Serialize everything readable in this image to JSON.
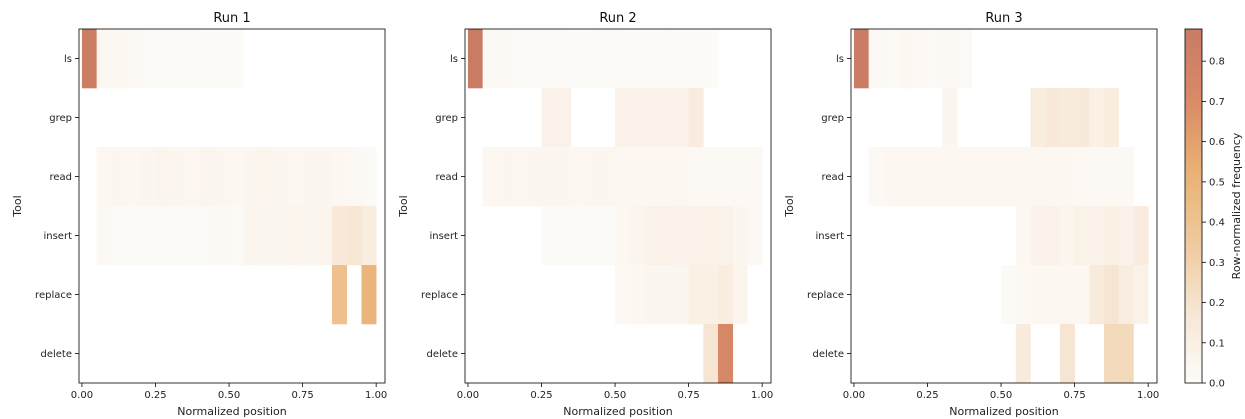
{
  "chart_data": {
    "type": "heatmap",
    "rows": [
      "ls",
      "grep",
      "read",
      "insert",
      "replace",
      "delete"
    ],
    "x_ticks": [
      "0.00",
      "0.25",
      "0.50",
      "0.75",
      "1.00"
    ],
    "x_tick_values": [
      0,
      0.25,
      0.5,
      0.75,
      1.0
    ],
    "xlim": [
      -0.01,
      1.03
    ],
    "bins": 20,
    "xlabel": "Normalized position",
    "ylabel": "Tool",
    "colorbar": {
      "label": "Row-normalized frequency",
      "range": [
        0,
        0.88
      ],
      "ticks": [
        "0.0",
        "0.1",
        "0.2",
        "0.3",
        "0.4",
        "0.5",
        "0.6",
        "0.7",
        "0.8"
      ],
      "tick_values": [
        0,
        0.1,
        0.2,
        0.3,
        0.4,
        0.5,
        0.6,
        0.7,
        0.8
      ],
      "colors": [
        "#fdfcfa",
        "#f7e6d4",
        "#efc99c",
        "#e9b174",
        "#d98a66",
        "#c97b64"
      ]
    },
    "panels": [
      {
        "title": "Run 1",
        "x_start": 0.0,
        "values": [
          [
            0.85,
            0.04,
            0.04,
            0.03,
            0.02,
            0.02,
            0.02,
            0.02,
            0.01,
            0.01,
            0.01,
            0.0,
            0.0,
            0.0,
            0.0,
            0.0,
            0.0,
            0.0,
            0.0,
            0.0
          ],
          [
            0.0,
            0.0,
            0.0,
            0.0,
            0.0,
            0.0,
            0.0,
            0.0,
            0.0,
            0.0,
            0.0,
            0.0,
            0.0,
            0.0,
            0.0,
            0.0,
            0.0,
            0.0,
            0.0,
            0.0
          ],
          [
            0.0,
            0.04,
            0.05,
            0.04,
            0.05,
            0.06,
            0.05,
            0.04,
            0.06,
            0.05,
            0.04,
            0.05,
            0.06,
            0.05,
            0.04,
            0.05,
            0.05,
            0.04,
            0.03,
            0.02
          ],
          [
            0.0,
            0.03,
            0.02,
            0.02,
            0.02,
            0.02,
            0.02,
            0.02,
            0.02,
            0.03,
            0.02,
            0.06,
            0.05,
            0.05,
            0.06,
            0.05,
            0.06,
            0.15,
            0.17,
            0.12
          ],
          [
            0.0,
            0.0,
            0.0,
            0.0,
            0.0,
            0.0,
            0.0,
            0.0,
            0.0,
            0.0,
            0.0,
            0.0,
            0.0,
            0.0,
            0.0,
            0.0,
            0.0,
            0.42,
            0.0,
            0.5
          ],
          [
            0.0,
            0.0,
            0.0,
            0.0,
            0.0,
            0.0,
            0.0,
            0.0,
            0.0,
            0.0,
            0.0,
            0.0,
            0.0,
            0.0,
            0.0,
            0.0,
            0.0,
            0.0,
            0.0,
            0.0
          ]
        ]
      },
      {
        "title": "Run 2",
        "x_start": 0.0,
        "values": [
          [
            0.88,
            0.03,
            0.03,
            0.02,
            0.02,
            0.02,
            0.02,
            0.01,
            0.02,
            0.02,
            0.02,
            0.01,
            0.01,
            0.02,
            0.01,
            0.01,
            0.01,
            0.0,
            0.0,
            0.0
          ],
          [
            0.0,
            0.0,
            0.0,
            0.0,
            0.0,
            0.08,
            0.08,
            0.0,
            0.0,
            0.0,
            0.08,
            0.08,
            0.08,
            0.08,
            0.08,
            0.13,
            0.0,
            0.0,
            0.0,
            0.0
          ],
          [
            0.0,
            0.04,
            0.05,
            0.04,
            0.05,
            0.05,
            0.05,
            0.04,
            0.05,
            0.05,
            0.04,
            0.04,
            0.04,
            0.04,
            0.04,
            0.03,
            0.03,
            0.03,
            0.03,
            0.03
          ],
          [
            0.0,
            0.0,
            0.0,
            0.0,
            0.0,
            0.02,
            0.02,
            0.02,
            0.02,
            0.02,
            0.04,
            0.06,
            0.08,
            0.08,
            0.07,
            0.08,
            0.09,
            0.08,
            0.05,
            0.03
          ],
          [
            0.0,
            0.0,
            0.0,
            0.0,
            0.0,
            0.0,
            0.0,
            0.0,
            0.0,
            0.0,
            0.03,
            0.04,
            0.05,
            0.05,
            0.05,
            0.1,
            0.1,
            0.12,
            0.06,
            0.0
          ],
          [
            0.0,
            0.0,
            0.0,
            0.0,
            0.0,
            0.0,
            0.0,
            0.0,
            0.0,
            0.0,
            0.0,
            0.0,
            0.0,
            0.0,
            0.0,
            0.0,
            0.18,
            0.74,
            0.0,
            0.0
          ]
        ]
      },
      {
        "title": "Run 3",
        "x_start": 0.0,
        "values": [
          [
            0.87,
            0.03,
            0.02,
            0.04,
            0.03,
            0.02,
            0.03,
            0.02,
            0.0,
            0.0,
            0.0,
            0.0,
            0.0,
            0.0,
            0.0,
            0.0,
            0.0,
            0.0,
            0.0,
            0.0
          ],
          [
            0.0,
            0.0,
            0.0,
            0.0,
            0.0,
            0.0,
            0.05,
            0.0,
            0.0,
            0.0,
            0.0,
            0.0,
            0.12,
            0.15,
            0.14,
            0.15,
            0.1,
            0.12,
            0.0,
            0.0
          ],
          [
            0.0,
            0.03,
            0.04,
            0.04,
            0.04,
            0.04,
            0.04,
            0.04,
            0.04,
            0.04,
            0.04,
            0.04,
            0.04,
            0.04,
            0.04,
            0.03,
            0.03,
            0.03,
            0.03,
            0.0
          ],
          [
            0.0,
            0.0,
            0.0,
            0.0,
            0.0,
            0.0,
            0.0,
            0.0,
            0.0,
            0.0,
            0.0,
            0.04,
            0.07,
            0.08,
            0.06,
            0.09,
            0.08,
            0.1,
            0.07,
            0.13
          ],
          [
            0.0,
            0.0,
            0.0,
            0.0,
            0.0,
            0.0,
            0.0,
            0.0,
            0.0,
            0.0,
            0.02,
            0.03,
            0.04,
            0.04,
            0.04,
            0.04,
            0.14,
            0.18,
            0.12,
            0.08
          ],
          [
            0.0,
            0.0,
            0.0,
            0.0,
            0.0,
            0.0,
            0.0,
            0.0,
            0.0,
            0.0,
            0.0,
            0.14,
            0.0,
            0.0,
            0.18,
            0.0,
            0.0,
            0.25,
            0.25,
            0.0
          ]
        ]
      }
    ]
  }
}
